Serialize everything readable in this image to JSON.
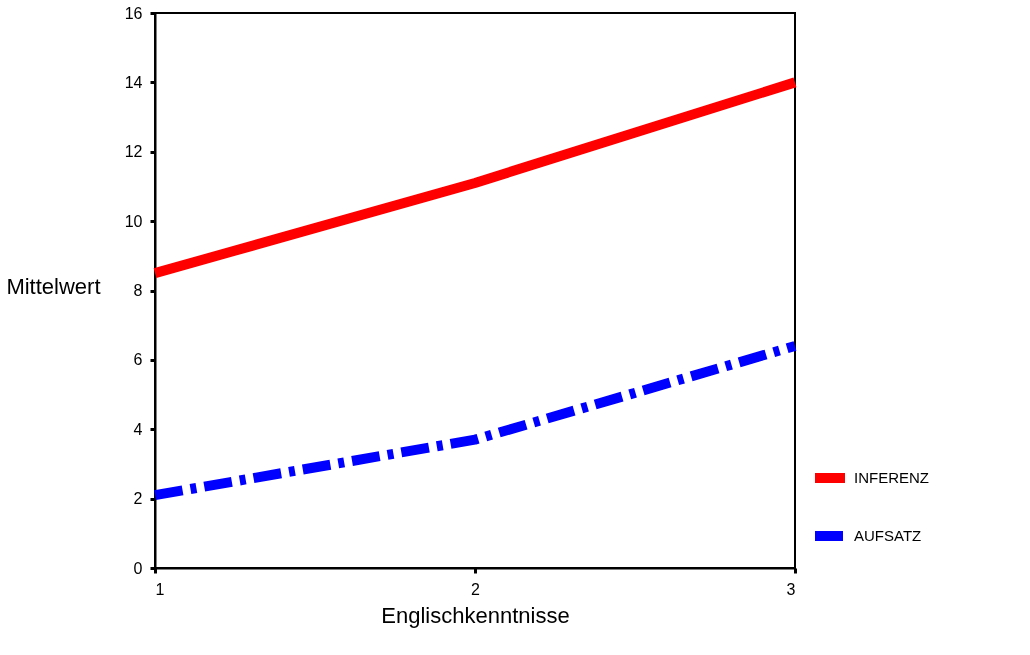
{
  "chart_data": {
    "type": "line",
    "xlabel": "Englischkenntnisse",
    "ylabel": "Mittelwert",
    "x": [
      1,
      2,
      3
    ],
    "xlim": [
      1,
      3
    ],
    "xticks": [
      1,
      2,
      3
    ],
    "ylim": [
      0,
      16
    ],
    "yticks": [
      0,
      2,
      4,
      6,
      8,
      10,
      12,
      14,
      16
    ],
    "grid": false,
    "legend": "bottom right",
    "marker": "none",
    "series": [
      {
        "name": "INFERENZ",
        "color": "#ff0000",
        "line_style": "solid",
        "values": [
          8.5,
          11.1,
          14.0
        ]
      },
      {
        "name": "AUFSATZ",
        "color": "#0000ff",
        "line_style": "dashed",
        "values": [
          2.1,
          3.7,
          6.4
        ]
      }
    ]
  }
}
